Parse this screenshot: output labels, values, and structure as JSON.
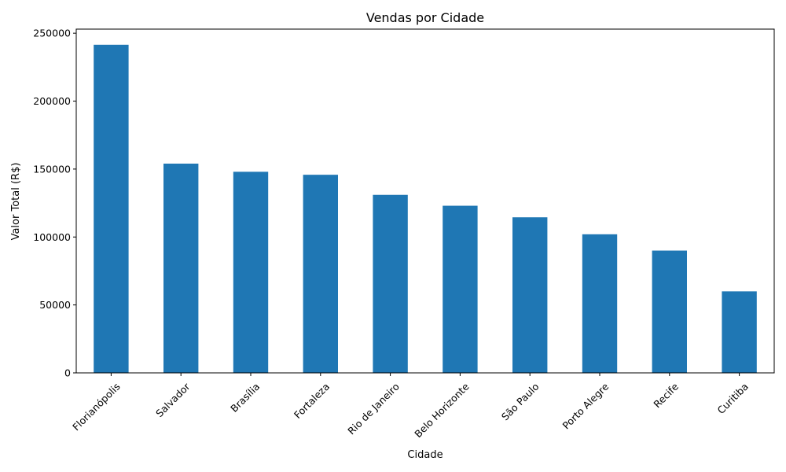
{
  "chart_data": {
    "type": "bar",
    "title": "Vendas por Cidade",
    "xlabel": "Cidade",
    "ylabel": "Valor Total (R$)",
    "categories": [
      "Florianópolis",
      "Salvador",
      "Brasília",
      "Fortaleza",
      "Rio de Janeiro",
      "Belo Horizonte",
      "São Paulo",
      "Porto Alegre",
      "Recife",
      "Curitiba"
    ],
    "values": [
      241500,
      154000,
      148000,
      145800,
      131000,
      123000,
      114500,
      102000,
      90000,
      60000
    ],
    "ylim": [
      0,
      253000
    ],
    "yticks": [
      0,
      50000,
      100000,
      150000,
      200000,
      250000
    ],
    "grid": false,
    "colors": {
      "bar": "#1f77b4",
      "axis": "#000000"
    }
  }
}
